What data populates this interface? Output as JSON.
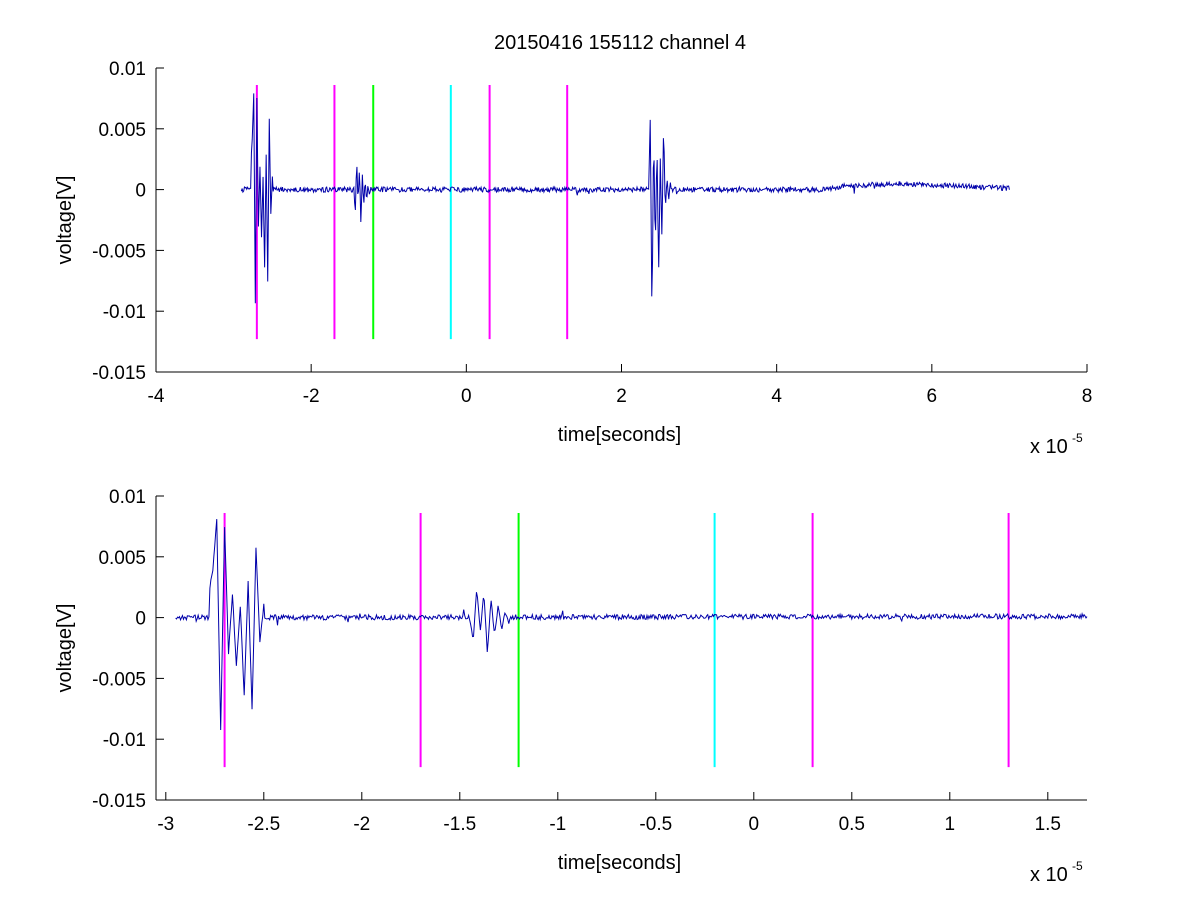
{
  "figure": {
    "title": "20150416 155112 channel 4",
    "background": "#ffffff",
    "axis_color": "#000000"
  },
  "chart_data": [
    {
      "type": "line",
      "title": "20150416 155112 channel 4",
      "xlabel": "time[seconds]",
      "ylabel": "voltage[V]",
      "x_multiplier_label": "x 10",
      "x_multiplier_exponent": "-5",
      "x_scale": 1e-05,
      "xlim": [
        -4,
        8
      ],
      "ylim": [
        -0.015,
        0.01
      ],
      "xticks": [
        -4,
        -2,
        0,
        2,
        4,
        6,
        8
      ],
      "xtick_labels": [
        "-4",
        "-2",
        "0",
        "2",
        "4",
        "6",
        "8"
      ],
      "yticks": [
        -0.015,
        -0.01,
        -0.005,
        0,
        0.005,
        0.01
      ],
      "ytick_labels": [
        "-0.015",
        "-0.01",
        "-0.005",
        "0",
        "0.005",
        "0.01"
      ],
      "grid": false,
      "vertical_markers": [
        {
          "x": -2.7,
          "color": "#ff00ff",
          "y_range": [
            -0.0123,
            0.0086
          ]
        },
        {
          "x": -1.7,
          "color": "#ff00ff",
          "y_range": [
            -0.0123,
            0.0086
          ]
        },
        {
          "x": -1.2,
          "color": "#00ff00",
          "y_range": [
            -0.0123,
            0.0086
          ]
        },
        {
          "x": -0.2,
          "color": "#00ffff",
          "y_range": [
            -0.0123,
            0.0086
          ]
        },
        {
          "x": 0.3,
          "color": "#ff00ff",
          "y_range": [
            -0.0123,
            0.0086
          ]
        },
        {
          "x": 1.3,
          "color": "#ff00ff",
          "y_range": [
            -0.0123,
            0.0086
          ]
        }
      ],
      "series": [
        {
          "color": "#0000aa",
          "x_range": [
            -2.9,
            7.0
          ],
          "x_step": 0.01,
          "baseline_segments": [
            [
              -2.9,
              0
            ],
            [
              4.6,
              0
            ],
            [
              4.9,
              0.0003
            ],
            [
              5.6,
              0.0005
            ],
            [
              6.3,
              0.0003
            ],
            [
              7.0,
              0.0001
            ]
          ],
          "noise_amplitude": 0.00035,
          "bursts": [
            {
              "x_range": [
                -2.78,
                -2.5
              ],
              "values": [
                0.002,
                0.004,
                0.008,
                -0.0093,
                0.0075,
                -0.003,
                0.002,
                -0.004,
                0.001,
                -0.0065,
                0.003,
                -0.0075,
                0.0057,
                -0.002,
                0.001
              ]
            },
            {
              "x_range": [
                -1.45,
                -1.25
              ],
              "values": [
                0,
                -0.002,
                0.0025,
                -0.0012,
                0.002,
                -0.003,
                0.0015,
                -0.0015,
                0.001,
                -0.001,
                0.0005,
                -0.0005
              ]
            },
            {
              "x_range": [
                2.35,
                2.65
              ],
              "values": [
                0,
                0.006,
                -0.0112,
                0.005,
                -0.005,
                0.004,
                -0.007,
                0.0025,
                -0.004,
                0.0056,
                -0.002,
                0.001,
                -0.001,
                0.0005,
                0
              ]
            }
          ]
        }
      ]
    },
    {
      "type": "line",
      "xlabel": "time[seconds]",
      "ylabel": "voltage[V]",
      "x_multiplier_label": "x 10",
      "x_multiplier_exponent": "-5",
      "x_scale": 1e-05,
      "xlim": [
        -3.05,
        1.7
      ],
      "ylim": [
        -0.015,
        0.01
      ],
      "xticks": [
        -3,
        -2.5,
        -2,
        -1.5,
        -1,
        -0.5,
        0,
        0.5,
        1,
        1.5
      ],
      "xtick_labels": [
        "-3",
        "-2.5",
        "-2",
        "-1.5",
        "-1",
        "-0.5",
        "0",
        "0.5",
        "1",
        "1.5"
      ],
      "yticks": [
        -0.015,
        -0.01,
        -0.005,
        0,
        0.005,
        0.01
      ],
      "ytick_labels": [
        "-0.015",
        "-0.01",
        "-0.005",
        "0",
        "0.005",
        "0.01"
      ],
      "grid": false,
      "vertical_markers": [
        {
          "x": -2.7,
          "color": "#ff00ff",
          "y_range": [
            -0.0123,
            0.0086
          ]
        },
        {
          "x": -1.7,
          "color": "#ff00ff",
          "y_range": [
            -0.0123,
            0.0086
          ]
        },
        {
          "x": -1.2,
          "color": "#00ff00",
          "y_range": [
            -0.0123,
            0.0086
          ]
        },
        {
          "x": -0.2,
          "color": "#00ffff",
          "y_range": [
            -0.0123,
            0.0086
          ]
        },
        {
          "x": 0.3,
          "color": "#ff00ff",
          "y_range": [
            -0.0123,
            0.0086
          ]
        },
        {
          "x": 1.3,
          "color": "#ff00ff",
          "y_range": [
            -0.0123,
            0.0086
          ]
        }
      ],
      "series": [
        {
          "color": "#0000aa",
          "x_range": [
            -2.95,
            1.7
          ],
          "x_step": 0.005,
          "baseline_segments": [
            [
              -2.95,
              0
            ],
            [
              1.7,
              0.0001
            ]
          ],
          "noise_amplitude": 0.00035,
          "bursts": [
            {
              "x_range": [
                -2.78,
                -2.5
              ],
              "values": [
                0.002,
                0.004,
                0.008,
                -0.0093,
                0.0075,
                -0.003,
                0.002,
                -0.004,
                0.001,
                -0.0065,
                0.003,
                -0.0075,
                0.0057,
                -0.002,
                0.001
              ]
            },
            {
              "x_range": [
                -1.45,
                -1.25
              ],
              "values": [
                0,
                -0.002,
                0.0025,
                -0.0012,
                0.002,
                -0.003,
                0.0015,
                -0.0015,
                0.001,
                -0.001,
                0.0005,
                -0.0005
              ]
            }
          ]
        }
      ]
    }
  ]
}
